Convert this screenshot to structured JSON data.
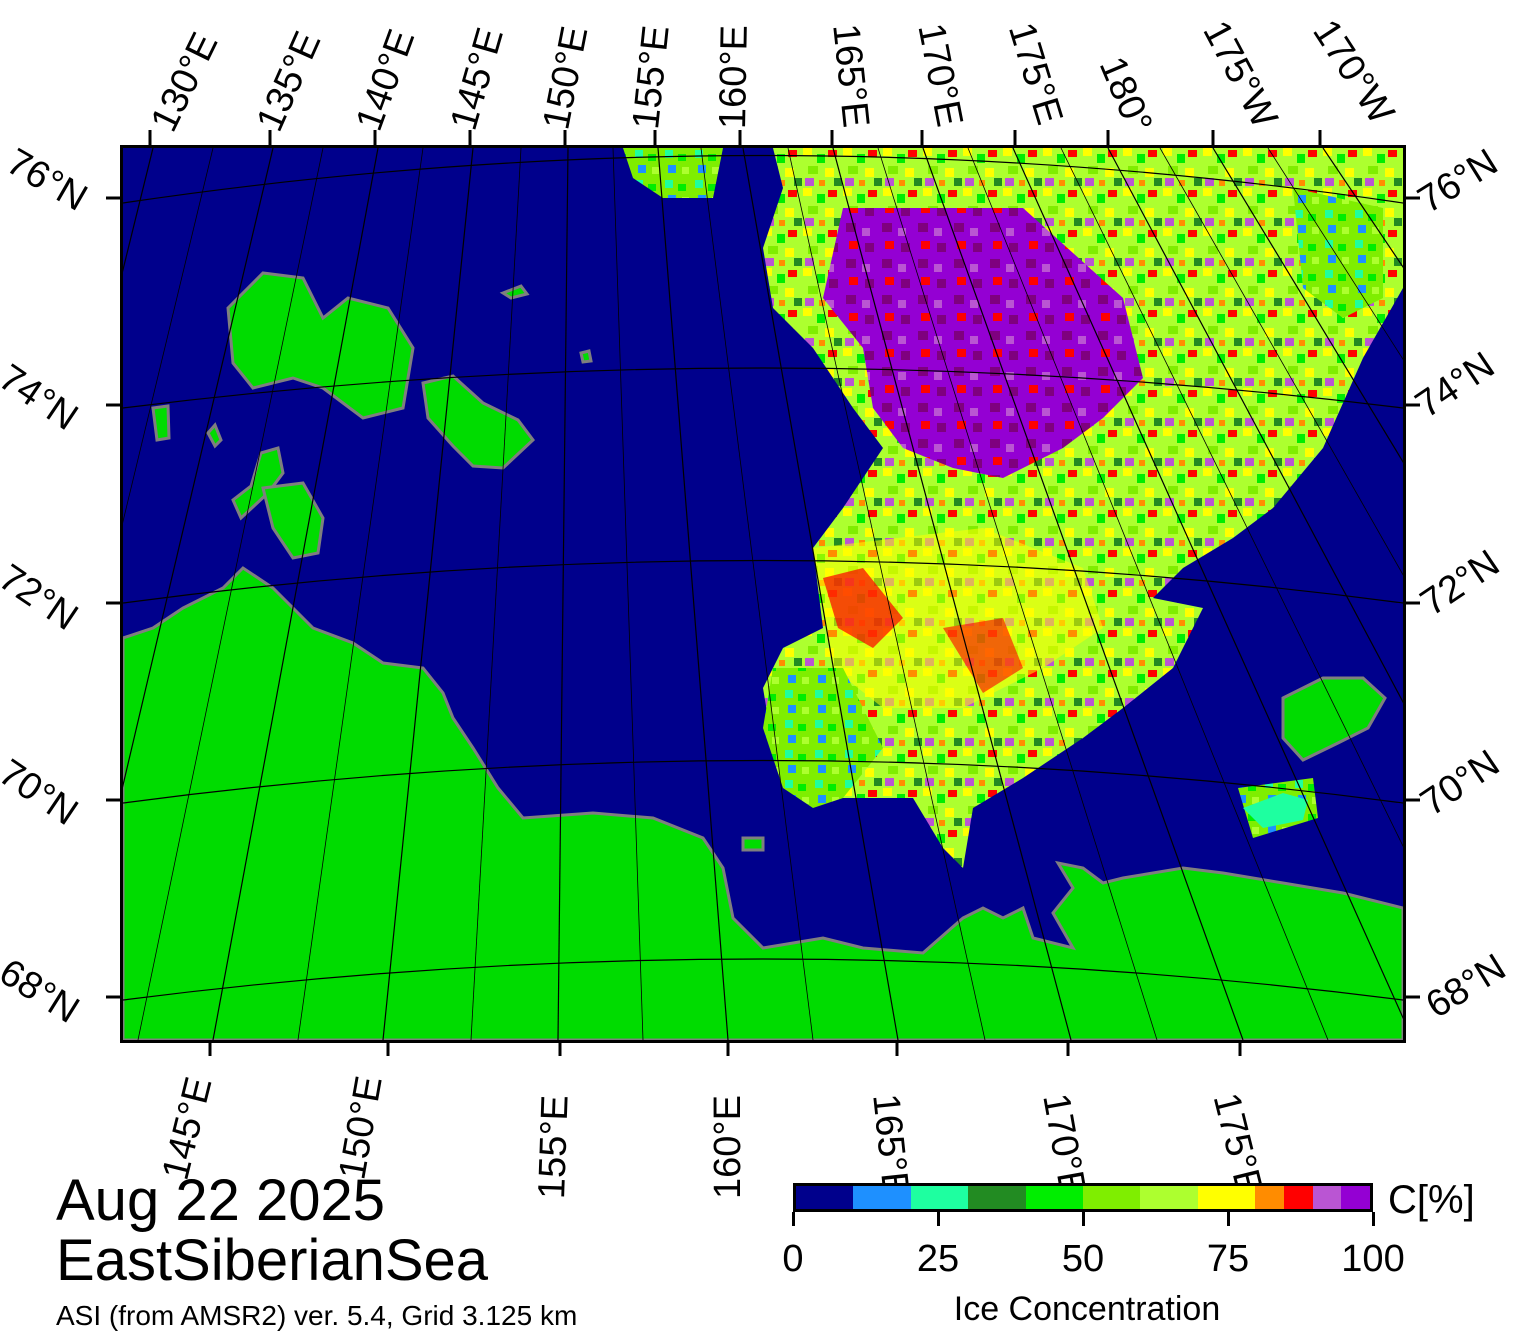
{
  "map": {
    "top_lon_labels": [
      "130°E",
      "135°E",
      "140°E",
      "145°E",
      "150°E",
      "155°E",
      "160°E",
      "165°E",
      "170°E",
      "175°E",
      "180°",
      "175°W",
      "170°W"
    ],
    "bottom_lon_labels": [
      "145°E",
      "150°E",
      "155°E",
      "160°E",
      "165°E",
      "170°E",
      "175°E"
    ],
    "left_lat_labels": [
      "76°N",
      "74°N",
      "72°N",
      "70°N",
      "68°N"
    ],
    "right_lat_labels": [
      "76°N",
      "74°N",
      "72°N",
      "70°N",
      "68°N"
    ],
    "colors": {
      "water": "#00008c",
      "land": "#00dc00",
      "coast": "#7f7f7f",
      "grid": "#000000"
    },
    "icons": [
      "land-mass",
      "sea-ice-field"
    ]
  },
  "title": {
    "date": "Aug 22 2025",
    "region": "EastSiberianSea",
    "source": "ASI (from AMSR2) ver. 5.4,  Grid 3.125 km"
  },
  "colorbar": {
    "title": "Ice Concentration",
    "unit": "C[%]",
    "ticks": [
      "0",
      "25",
      "50",
      "75",
      "100"
    ],
    "colors": [
      "#00008c",
      "#1e90ff",
      "#1effa0",
      "#228b22",
      "#00ee00",
      "#7fee00",
      "#adff2f",
      "#ffff00",
      "#ff8c00",
      "#ff0000",
      "#ba55d3",
      "#9400d3",
      "#7f007f"
    ],
    "stops": [
      0,
      10,
      20,
      30,
      40,
      50,
      60,
      70,
      80,
      85,
      90,
      95,
      100
    ]
  }
}
